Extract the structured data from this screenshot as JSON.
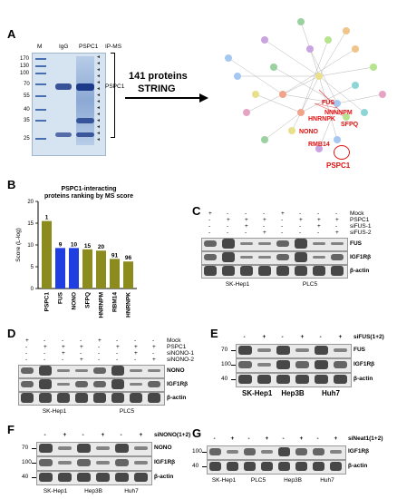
{
  "panels": {
    "A": "A",
    "B": "B",
    "C": "C",
    "D": "D",
    "E": "E",
    "F": "F",
    "G": "G"
  },
  "panel_a": {
    "gel_lanes": [
      "M",
      "IgG",
      "PSPC1"
    ],
    "ip_ms": "IP-MS",
    "markers": [
      "170",
      "130",
      "100",
      "70",
      "55",
      "40",
      "35",
      "25"
    ],
    "pspc1_label": "PSPC1",
    "arrow_text_1": "141 proteins",
    "arrow_text_2": "STRING",
    "network_labels": [
      "FUS",
      "NNNNPM",
      "HNRNPK",
      "SFPQ",
      "NONO",
      "RMB14",
      "PSPC1"
    ]
  },
  "panel_b": {
    "chart_data": {
      "type": "bar",
      "title": "PSPC1-interacting proteins ranking by MS score",
      "ylabel": "Score (L-log)",
      "categories": [
        "PSPC1",
        "FUS",
        "NONO",
        "SFPQ",
        "HNRNPM",
        "RBM14",
        "HNRNPK"
      ],
      "values": [
        15.5,
        9.3,
        9.3,
        9.0,
        8.7,
        6.8,
        6.2
      ],
      "rank_labels": [
        "1",
        "9",
        "10",
        "15",
        "20",
        "91",
        "96"
      ],
      "colors": [
        "#8b8b1e",
        "#1f3fe0",
        "#1f3fe0",
        "#8b8b1e",
        "#8b8b1e",
        "#8b8b1e",
        "#8b8b1e"
      ],
      "ylim": [
        0,
        20
      ],
      "yticks": [
        "0",
        "5",
        "10",
        "15",
        "20"
      ]
    }
  },
  "panel_c": {
    "rows": [
      "Mock",
      "PSPC1",
      "siFUS-1",
      "siFUS-2"
    ],
    "signs": [
      [
        "+",
        "-",
        "-",
        "-",
        "+",
        "-",
        "-",
        "-"
      ],
      [
        "-",
        "+",
        "+",
        "+",
        "-",
        "+",
        "+",
        "+"
      ],
      [
        "-",
        "-",
        "+",
        "-",
        "-",
        "-",
        "+",
        "-"
      ],
      [
        "-",
        "-",
        "-",
        "+",
        "-",
        "-",
        "-",
        "+"
      ]
    ],
    "blots": [
      "FUS",
      "IGF1Rβ",
      "β-actin"
    ],
    "cells": [
      "SK-Hep1",
      "PLC5"
    ]
  },
  "panel_d": {
    "rows": [
      "Mock",
      "PSPC1",
      "siNONO-1",
      "siNONO-2"
    ],
    "signs": [
      [
        "+",
        "-",
        "-",
        "-",
        "+",
        "-",
        "-",
        "-"
      ],
      [
        "-",
        "+",
        "+",
        "+",
        "-",
        "+",
        "+",
        "+"
      ],
      [
        "-",
        "-",
        "+",
        "-",
        "-",
        "-",
        "+",
        "-"
      ],
      [
        "-",
        "-",
        "-",
        "+",
        "-",
        "-",
        "-",
        "+"
      ]
    ],
    "blots": [
      "NONO",
      "IGF1Rβ",
      "β-actin"
    ],
    "cells": [
      "SK-Hep1",
      "PLC5"
    ]
  },
  "panel_e": {
    "treatment": "siFUS(1+2)",
    "signs": [
      "-",
      "+",
      "-",
      "+",
      "-",
      "+"
    ],
    "markers": [
      "70",
      "100",
      "40"
    ],
    "blots": [
      "FUS",
      "IGF1Rβ",
      "β-actin"
    ],
    "cells": [
      "SK-Hep1",
      "Hep3B",
      "Huh7"
    ]
  },
  "panel_f": {
    "treatment": "siNONO(1+2)",
    "signs": [
      "-",
      "+",
      "-",
      "+",
      "-",
      "+"
    ],
    "markers": [
      "70",
      "100",
      "40"
    ],
    "blots": [
      "NONO",
      "IGF1Rβ",
      "β-actin"
    ],
    "cells": [
      "SK-Hep1",
      "Hep3B",
      "Huh7"
    ]
  },
  "panel_g": {
    "treatment": "siNeat1(1+2)",
    "signs": [
      "-",
      "+",
      "-",
      "+",
      "-",
      "+",
      "-",
      "+"
    ],
    "markers": [
      "100",
      "40"
    ],
    "blots": [
      "IGF1Rβ",
      "β-actin"
    ],
    "cells": [
      "SK-Hep1",
      "PLC5",
      "Hep3B",
      "Huh7"
    ]
  }
}
